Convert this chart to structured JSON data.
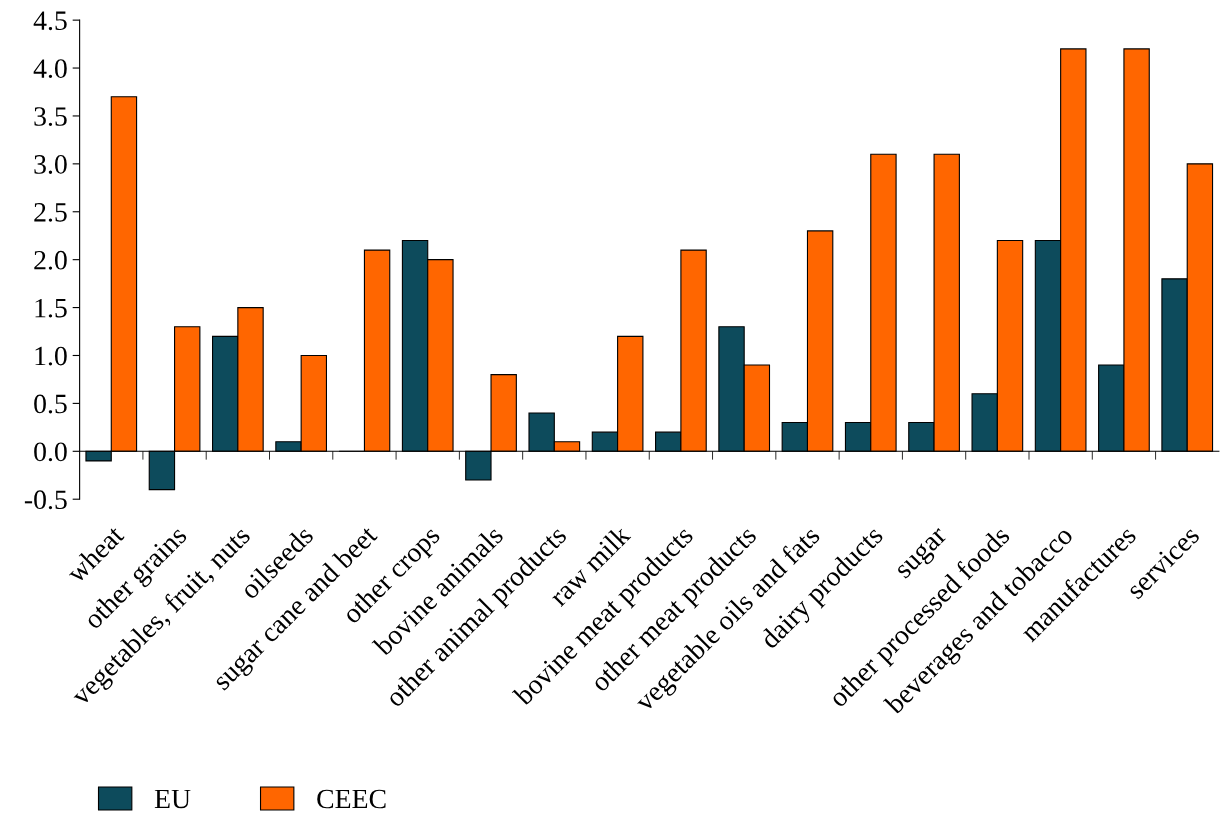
{
  "chart_data": {
    "type": "bar",
    "categories": [
      "wheat",
      "other grains",
      "vegetables, fruit, nuts",
      "oilseeds",
      "sugar cane and beet",
      "other crops",
      "bovine animals",
      "other animal products",
      "raw milk",
      "bovine meat products",
      "other meat products",
      "vegetable oils and fats",
      "dairy products",
      "sugar",
      "other processed foods",
      "beverages and tobacco",
      "manufactures",
      "services"
    ],
    "series": [
      {
        "name": "EU",
        "color": "#0d4b5c",
        "values": [
          -0.1,
          -0.4,
          1.2,
          0.1,
          0.0,
          2.2,
          -0.3,
          0.4,
          0.2,
          0.2,
          1.3,
          0.3,
          0.3,
          0.3,
          0.6,
          2.2,
          0.9,
          1.8
        ]
      },
      {
        "name": "CEEC",
        "color": "#ff6600",
        "values": [
          3.7,
          1.3,
          1.5,
          1.0,
          2.1,
          2.0,
          0.8,
          0.1,
          1.2,
          2.1,
          0.9,
          2.3,
          3.1,
          3.1,
          2.2,
          4.2,
          4.2,
          3.0
        ]
      }
    ],
    "ylim": [
      -0.5,
      4.5
    ],
    "yticks": [
      {
        "value": -0.5,
        "label": "-0.5"
      },
      {
        "value": 0,
        "label": "0.0"
      },
      {
        "value": 0.5,
        "label": "0.5"
      },
      {
        "value": 1,
        "label": "1.0"
      },
      {
        "value": 1.5,
        "label": "1.5"
      },
      {
        "value": 2,
        "label": "2.0"
      },
      {
        "value": 2.5,
        "label": "2.5"
      },
      {
        "value": 3,
        "label": "3.0"
      },
      {
        "value": 3.5,
        "label": "3.5"
      },
      {
        "value": 4,
        "label": "4.0"
      },
      {
        "value": 4.5,
        "label": "4.5"
      }
    ],
    "grid": false,
    "legend": "bottom left"
  }
}
